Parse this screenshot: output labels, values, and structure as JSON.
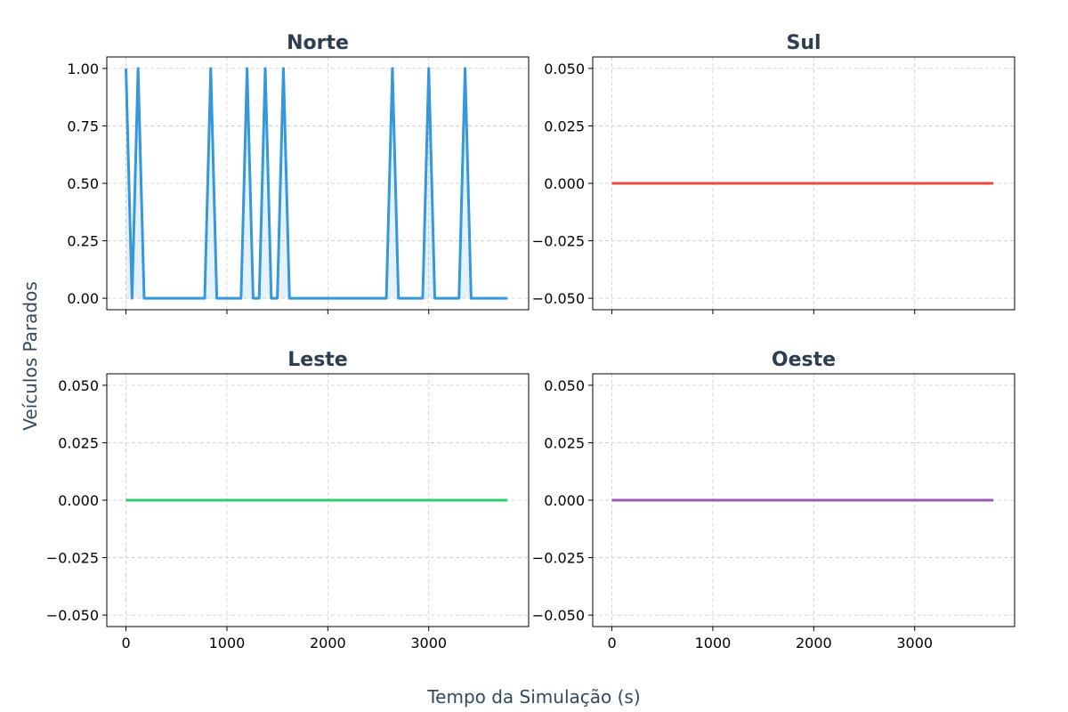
{
  "figure": {
    "xlabel": "Tempo da Simulação (s)",
    "ylabel": "Veículos Parados"
  },
  "chart_data": [
    {
      "type": "line",
      "title": "Norte",
      "color": "#3498db",
      "fill": true,
      "xlim": [
        -190,
        3990
      ],
      "ylim": [
        -0.05,
        1.05
      ],
      "xticks": [
        0,
        1000,
        2000,
        3000
      ],
      "xtick_labels": [
        "0",
        "1000",
        "2000",
        "3000"
      ],
      "show_xtick_labels": false,
      "yticks": [
        0,
        0.25,
        0.5,
        0.75,
        1.0
      ],
      "ytick_labels": [
        "0.00",
        "0.25",
        "0.50",
        "0.75",
        "1.00"
      ],
      "grid": true,
      "x": [
        0,
        60,
        120,
        180,
        780,
        840,
        900,
        1140,
        1200,
        1260,
        1320,
        1380,
        1440,
        1500,
        1560,
        1620,
        2580,
        2640,
        2700,
        2940,
        3000,
        3060,
        3300,
        3360,
        3420,
        3780
      ],
      "y": [
        1,
        0,
        1,
        0,
        0,
        1,
        0,
        0,
        1,
        0,
        0,
        1,
        0,
        0,
        1,
        0,
        0,
        1,
        0,
        0,
        1,
        0,
        0,
        1,
        0,
        0
      ]
    },
    {
      "type": "line",
      "title": "Sul",
      "color": "#e74c3c",
      "fill": false,
      "xlim": [
        -190,
        3990
      ],
      "ylim": [
        -0.055,
        0.055
      ],
      "xticks": [
        0,
        1000,
        2000,
        3000
      ],
      "xtick_labels": [
        "0",
        "1000",
        "2000",
        "3000"
      ],
      "show_xtick_labels": false,
      "yticks": [
        -0.05,
        -0.025,
        0,
        0.025,
        0.05
      ],
      "ytick_labels": [
        "−0.050",
        "−0.025",
        "0.000",
        "0.025",
        "0.050"
      ],
      "grid": true,
      "x": [
        0,
        3780
      ],
      "y": [
        0,
        0
      ]
    },
    {
      "type": "line",
      "title": "Leste",
      "color": "#2ecc71",
      "fill": false,
      "xlim": [
        -190,
        3990
      ],
      "ylim": [
        -0.055,
        0.055
      ],
      "xticks": [
        0,
        1000,
        2000,
        3000
      ],
      "xtick_labels": [
        "0",
        "1000",
        "2000",
        "3000"
      ],
      "show_xtick_labels": true,
      "yticks": [
        -0.05,
        -0.025,
        0,
        0.025,
        0.05
      ],
      "ytick_labels": [
        "−0.050",
        "−0.025",
        "0.000",
        "0.025",
        "0.050"
      ],
      "grid": true,
      "x": [
        0,
        3780
      ],
      "y": [
        0,
        0
      ]
    },
    {
      "type": "line",
      "title": "Oeste",
      "color": "#9b59b6",
      "fill": false,
      "xlim": [
        -190,
        3990
      ],
      "ylim": [
        -0.055,
        0.055
      ],
      "xticks": [
        0,
        1000,
        2000,
        3000
      ],
      "xtick_labels": [
        "0",
        "1000",
        "2000",
        "3000"
      ],
      "show_xtick_labels": true,
      "yticks": [
        -0.05,
        -0.025,
        0,
        0.025,
        0.05
      ],
      "ytick_labels": [
        "−0.050",
        "−0.025",
        "0.000",
        "0.025",
        "0.050"
      ],
      "grid": true,
      "x": [
        0,
        3780
      ],
      "y": [
        0,
        0
      ]
    }
  ]
}
